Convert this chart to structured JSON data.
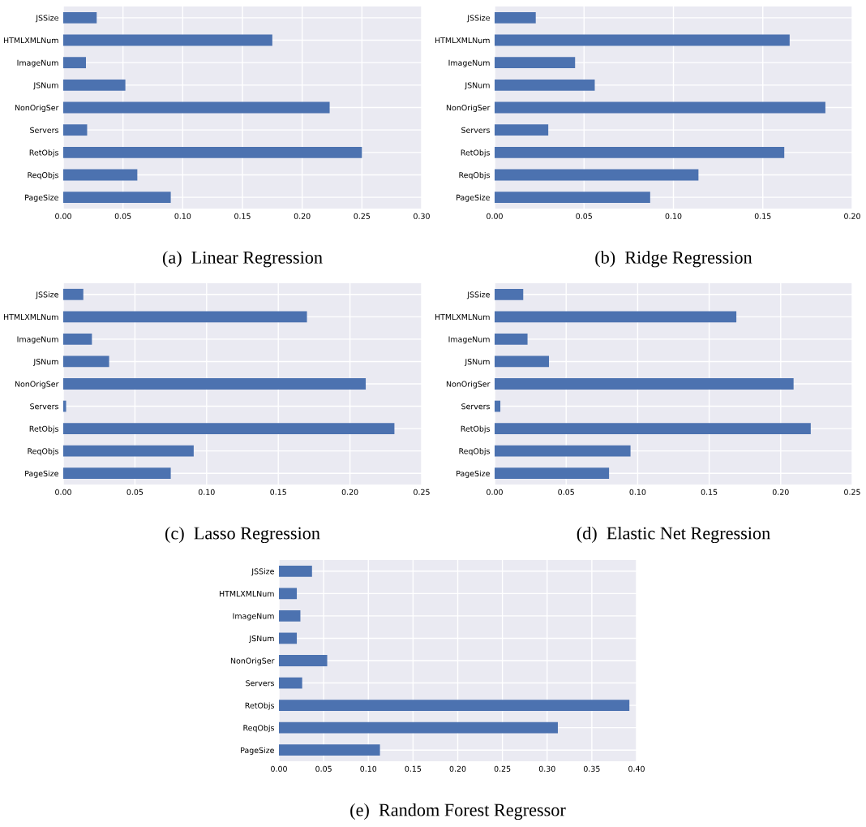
{
  "chart_data": [
    {
      "type": "bar",
      "orientation": "horizontal",
      "title": "(a)  Linear Regression",
      "categories": [
        "JSSize",
        "HTMLXMLNum",
        "ImageNum",
        "JSNum",
        "NonOrigSer",
        "Servers",
        "RetObjs",
        "ReqObjs",
        "PageSize"
      ],
      "values": [
        0.028,
        0.175,
        0.019,
        0.052,
        0.223,
        0.02,
        0.25,
        0.062,
        0.09
      ],
      "color": "#4c72b0",
      "xlim": [
        0,
        0.3
      ],
      "xticks": [
        {
          "value": 0,
          "label": "0.00"
        },
        {
          "value": 0.05,
          "label": "0.05"
        },
        {
          "value": 0.1,
          "label": "0.10"
        },
        {
          "value": 0.15,
          "label": "0.15"
        },
        {
          "value": 0.2,
          "label": "0.20"
        },
        {
          "value": 0.25,
          "label": "0.25"
        },
        {
          "value": 0.3,
          "label": "0.30"
        }
      ],
      "grid": true
    },
    {
      "type": "bar",
      "orientation": "horizontal",
      "title": "(b)  Ridge Regression",
      "categories": [
        "JSSize",
        "HTMLXMLNum",
        "ImageNum",
        "JSNum",
        "NonOrigSer",
        "Servers",
        "RetObjs",
        "ReqObjs",
        "PageSize"
      ],
      "values": [
        0.023,
        0.165,
        0.045,
        0.056,
        0.185,
        0.03,
        0.162,
        0.114,
        0.087
      ],
      "color": "#4c72b0",
      "xlim": [
        0,
        0.2
      ],
      "xticks": [
        {
          "value": 0,
          "label": "0.00"
        },
        {
          "value": 0.05,
          "label": "0.05"
        },
        {
          "value": 0.1,
          "label": "0.10"
        },
        {
          "value": 0.15,
          "label": "0.15"
        },
        {
          "value": 0.2,
          "label": "0.20"
        }
      ],
      "grid": true
    },
    {
      "type": "bar",
      "orientation": "horizontal",
      "title": "(c)  Lasso Regression",
      "categories": [
        "JSSize",
        "HTMLXMLNum",
        "ImageNum",
        "JSNum",
        "NonOrigSer",
        "Servers",
        "RetObjs",
        "ReqObjs",
        "PageSize"
      ],
      "values": [
        0.014,
        0.17,
        0.02,
        0.032,
        0.211,
        0.002,
        0.231,
        0.091,
        0.075
      ],
      "color": "#4c72b0",
      "xlim": [
        0,
        0.25
      ],
      "xticks": [
        {
          "value": 0,
          "label": "0.00"
        },
        {
          "value": 0.05,
          "label": "0.05"
        },
        {
          "value": 0.1,
          "label": "0.10"
        },
        {
          "value": 0.15,
          "label": "0.15"
        },
        {
          "value": 0.2,
          "label": "0.20"
        },
        {
          "value": 0.25,
          "label": "0.25"
        }
      ],
      "grid": true
    },
    {
      "type": "bar",
      "orientation": "horizontal",
      "title": "(d)  Elastic Net Regression",
      "categories": [
        "JSSize",
        "HTMLXMLNum",
        "ImageNum",
        "JSNum",
        "NonOrigSer",
        "Servers",
        "RetObjs",
        "ReqObjs",
        "PageSize"
      ],
      "values": [
        0.02,
        0.169,
        0.023,
        0.038,
        0.209,
        0.004,
        0.221,
        0.095,
        0.08
      ],
      "color": "#4c72b0",
      "xlim": [
        0,
        0.25
      ],
      "xticks": [
        {
          "value": 0,
          "label": "0.00"
        },
        {
          "value": 0.05,
          "label": "0.05"
        },
        {
          "value": 0.1,
          "label": "0.10"
        },
        {
          "value": 0.15,
          "label": "0.15"
        },
        {
          "value": 0.2,
          "label": "0.20"
        },
        {
          "value": 0.25,
          "label": "0.25"
        }
      ],
      "grid": true
    },
    {
      "type": "bar",
      "orientation": "horizontal",
      "title": "(e)  Random Forest Regressor",
      "categories": [
        "JSSize",
        "HTMLXMLNum",
        "ImageNum",
        "JSNum",
        "NonOrigSer",
        "Servers",
        "RetObjs",
        "ReqObjs",
        "PageSize"
      ],
      "values": [
        0.037,
        0.02,
        0.024,
        0.02,
        0.054,
        0.026,
        0.392,
        0.312,
        0.113
      ],
      "color": "#4c72b0",
      "xlim": [
        0,
        0.4
      ],
      "xticks": [
        {
          "value": 0,
          "label": "0.00"
        },
        {
          "value": 0.05,
          "label": "0.05"
        },
        {
          "value": 0.1,
          "label": "0.10"
        },
        {
          "value": 0.15,
          "label": "0.15"
        },
        {
          "value": 0.2,
          "label": "0.20"
        },
        {
          "value": 0.25,
          "label": "0.25"
        },
        {
          "value": 0.3,
          "label": "0.30"
        },
        {
          "value": 0.35,
          "label": "0.35"
        },
        {
          "value": 0.4,
          "label": "0.40"
        }
      ],
      "grid": true
    }
  ]
}
